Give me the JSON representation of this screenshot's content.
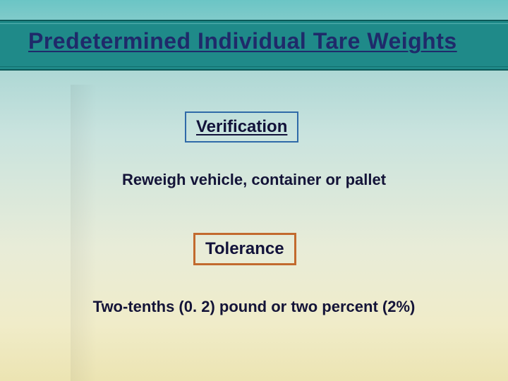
{
  "slide": {
    "title": "Predetermined Individual Tare Weights",
    "boxes": {
      "verification": {
        "label": "Verification",
        "border_color": "#2f6aa8"
      },
      "tolerance": {
        "label": "Tolerance",
        "border_color": "#c26a2e"
      }
    },
    "lines": {
      "verification": "Reweigh vehicle, container or pallet",
      "tolerance": "Two-tenths (0. 2) pound or two percent (2%)"
    },
    "colors": {
      "title_text": "#1f2a6a",
      "body_text": "#141438",
      "band_bg": "#1f8a89",
      "gradient_top": "#6bc5c5",
      "gradient_bottom": "#ece4b2"
    },
    "fonts": {
      "title_size_pt": 24,
      "box_size_pt": 18,
      "line_size_pt": 16,
      "family": "Arial"
    }
  }
}
